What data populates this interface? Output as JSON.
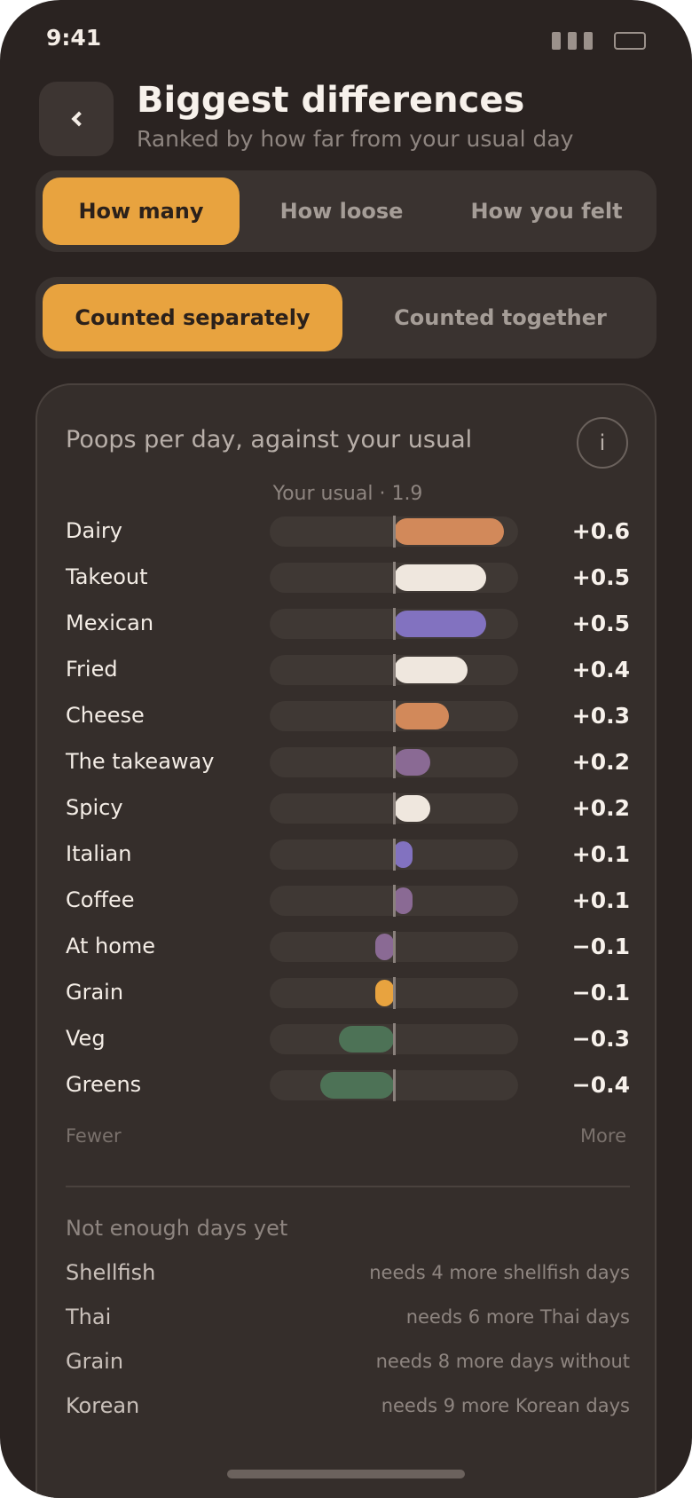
{
  "status": {
    "time": "9:41"
  },
  "header": {
    "title": "Biggest differences",
    "subtitle": "Ranked by how far from your usual day"
  },
  "metric_tabs": [
    "How many",
    "How loose",
    "How you felt"
  ],
  "metric_selected": "How many",
  "mode_tabs": [
    "Counted separately",
    "Counted together"
  ],
  "mode_selected": "Counted separately",
  "card": {
    "title": "Poops per day, against your usual",
    "info_label": "i",
    "usual": "Your usual · 1.9",
    "axis_left": "Fewer",
    "axis_right": "More"
  },
  "colors": {
    "accent": "#e8a33f",
    "orange": "#d2895a",
    "cream": "#efe7de",
    "purple": "#8272c0",
    "mauve": "#8a6a94",
    "yellow": "#e8a33f",
    "green": "#4d7256"
  },
  "chart_data": {
    "type": "bar",
    "orientation": "horizontal",
    "baseline_label": "Your usual · 1.9",
    "xlim": [
      -0.675,
      0.675
    ],
    "categories": [
      "Dairy",
      "Takeout",
      "Mexican",
      "Fried",
      "Cheese",
      "The takeaway",
      "Spicy",
      "Italian",
      "Coffee",
      "At home",
      "Grain",
      "Veg",
      "Greens"
    ],
    "values": [
      0.6,
      0.5,
      0.5,
      0.4,
      0.3,
      0.2,
      0.2,
      0.1,
      0.1,
      -0.1,
      -0.1,
      -0.3,
      -0.4
    ],
    "value_labels": [
      "+0.6",
      "+0.5",
      "+0.5",
      "+0.4",
      "+0.3",
      "+0.2",
      "+0.2",
      "+0.1",
      "+0.1",
      "−0.1",
      "−0.1",
      "−0.3",
      "−0.4"
    ],
    "bar_colors": [
      "orange",
      "cream",
      "purple",
      "cream",
      "orange",
      "mauve",
      "cream",
      "purple",
      "mauve",
      "mauve",
      "yellow",
      "green",
      "green"
    ]
  },
  "not_enough": {
    "title": "Not enough days yet",
    "items": [
      {
        "name": "Shellfish",
        "note": "needs 4 more shellfish days"
      },
      {
        "name": "Thai",
        "note": "needs 6 more Thai days"
      },
      {
        "name": "Grain",
        "note": "needs 8 more days without"
      },
      {
        "name": "Korean",
        "note": "needs 9 more Korean days"
      }
    ]
  }
}
